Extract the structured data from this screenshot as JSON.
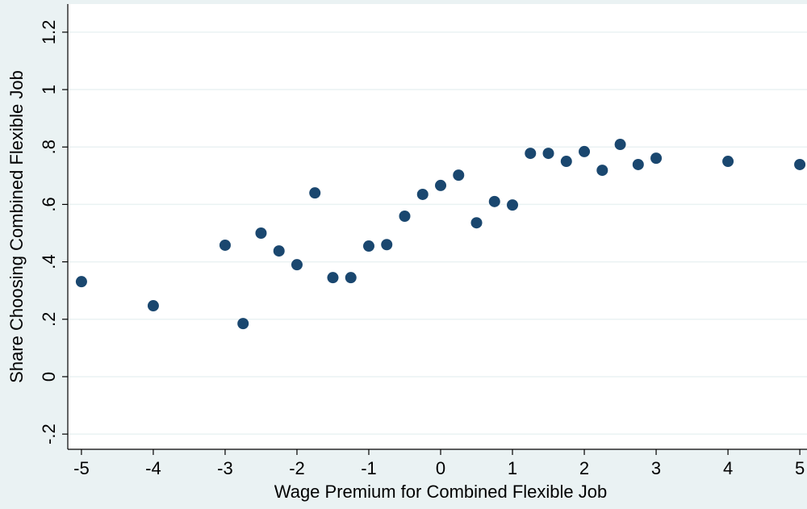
{
  "chart_data": {
    "type": "scatter",
    "x_label": "Wage Premium for Combined Flexible Job",
    "y_label": "Share Choosing Combined Flexible Job",
    "x": [
      -5,
      -4,
      -3,
      -2.75,
      -2.5,
      -2.25,
      -2,
      -1.75,
      -1.5,
      -1.25,
      -1,
      -0.75,
      -0.5,
      -0.25,
      0,
      0.25,
      0.5,
      0.75,
      1,
      1.25,
      1.5,
      1.75,
      2,
      2.25,
      2.5,
      2.75,
      3,
      4,
      5
    ],
    "values": [
      0.331,
      0.247,
      0.458,
      0.185,
      0.5,
      0.438,
      0.39,
      0.64,
      0.345,
      0.345,
      0.455,
      0.46,
      0.559,
      0.635,
      0.666,
      0.702,
      0.536,
      0.61,
      0.598,
      0.778,
      0.778,
      0.75,
      0.784,
      0.719,
      0.809,
      0.739,
      0.761,
      0.75,
      0.739
    ],
    "color": "#1a476f",
    "xlim": [
      -5.19,
      5.1
    ],
    "ylim": [
      -0.253,
      1.298
    ],
    "xticks": [
      -5,
      -4,
      -3,
      -2,
      -1,
      0,
      1,
      2,
      3,
      4,
      5
    ],
    "yticks": [
      {
        "value": -0.2,
        "label": "-.2"
      },
      0,
      {
        "value": 0.2,
        "label": ".2"
      },
      {
        "value": 0.4,
        "label": ".4"
      },
      {
        "value": 0.6,
        "label": ".6"
      },
      {
        "value": 0.8,
        "label": ".8"
      },
      1,
      {
        "value": 1.2,
        "label": "1.2"
      }
    ],
    "grid": true
  }
}
